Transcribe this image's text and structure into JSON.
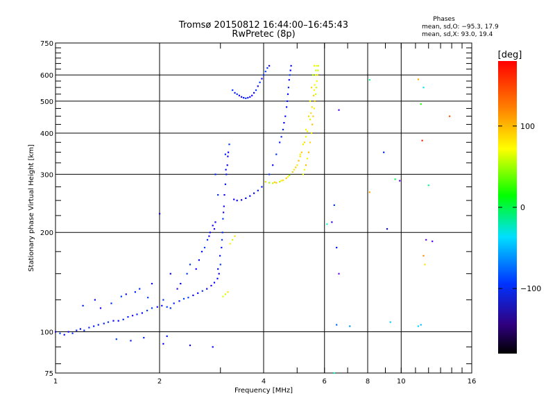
{
  "chart_data": {
    "type": "scatter",
    "title": "Tromsø 20150812 16:44:00–16:45:43",
    "subtitle": "RwPretec (8p)",
    "xlabel": "Frequency [MHz]",
    "ylabel": "Stationary phase Virtual Height [km]",
    "x_scale": "log",
    "y_scale": "log",
    "xlim": [
      1,
      16
    ],
    "ylim": [
      75,
      750
    ],
    "x_ticks": [
      1,
      2,
      4,
      6,
      8,
      10,
      16
    ],
    "x_tick_labels": [
      "1",
      "2",
      "4",
      "6",
      "8",
      "10",
      "16"
    ],
    "y_ticks": [
      75,
      100,
      200,
      300,
      400,
      500,
      600,
      750
    ],
    "y_tick_labels": [
      "75",
      "100",
      "200",
      "300",
      "400",
      "500",
      "600",
      "750"
    ],
    "grid": true,
    "legend": {
      "title": "Phases",
      "lines": [
        "mean, sd,O: −95.3, 17.9",
        "mean, sd,X:  93.0, 19.4"
      ],
      "placement": "top-right"
    },
    "colorbar": {
      "title": "[deg]",
      "range": [
        -180,
        180
      ],
      "tick_values": [
        100,
        0,
        -100
      ],
      "tick_labels": [
        "100",
        "0",
        "−100"
      ],
      "placement": "right"
    },
    "series": [
      {
        "mode": "O",
        "phase_deg": -95,
        "color_hint": "blue",
        "points": [
          [
            1.0,
            100
          ],
          [
            1.03,
            99
          ],
          [
            1.06,
            98
          ],
          [
            1.09,
            100
          ],
          [
            1.12,
            99
          ],
          [
            1.15,
            101
          ],
          [
            1.18,
            102
          ],
          [
            1.21,
            101
          ],
          [
            1.25,
            103
          ],
          [
            1.29,
            104
          ],
          [
            1.33,
            105
          ],
          [
            1.38,
            106
          ],
          [
            1.42,
            107
          ],
          [
            1.47,
            108
          ],
          [
            1.52,
            108
          ],
          [
            1.57,
            109
          ],
          [
            1.62,
            111
          ],
          [
            1.67,
            112
          ],
          [
            1.72,
            113
          ],
          [
            1.78,
            114
          ],
          [
            1.84,
            116
          ],
          [
            1.9,
            118
          ],
          [
            1.97,
            119
          ],
          [
            2.03,
            120
          ],
          [
            2.1,
            119
          ],
          [
            2.15,
            118
          ],
          [
            2.2,
            122
          ],
          [
            2.28,
            124
          ],
          [
            2.35,
            126
          ],
          [
            2.42,
            127
          ],
          [
            2.5,
            129
          ],
          [
            2.58,
            131
          ],
          [
            2.66,
            133
          ],
          [
            2.74,
            135
          ],
          [
            2.82,
            138
          ],
          [
            2.88,
            141
          ],
          [
            2.94,
            145
          ],
          [
            2.97,
            150
          ],
          [
            3.0,
            160
          ],
          [
            3.02,
            180
          ],
          [
            3.04,
            200
          ],
          [
            3.05,
            220
          ],
          [
            3.07,
            240
          ],
          [
            3.08,
            260
          ],
          [
            3.1,
            280
          ],
          [
            3.12,
            300
          ],
          [
            3.14,
            320
          ],
          [
            3.16,
            350
          ],
          [
            3.18,
            370
          ],
          [
            3.06,
            230
          ],
          [
            3.11,
            310
          ],
          [
            3.15,
            340
          ],
          [
            2.99,
            170
          ],
          [
            3.03,
            190
          ],
          [
            2.95,
            155
          ],
          [
            3.28,
            252
          ],
          [
            3.35,
            250
          ],
          [
            3.45,
            251
          ],
          [
            3.55,
            254
          ],
          [
            3.65,
            258
          ],
          [
            3.75,
            263
          ],
          [
            3.85,
            268
          ],
          [
            3.95,
            275
          ],
          [
            4.05,
            285
          ],
          [
            4.15,
            300
          ],
          [
            4.25,
            320
          ],
          [
            4.35,
            345
          ],
          [
            4.45,
            375
          ],
          [
            4.55,
            410
          ],
          [
            4.62,
            450
          ],
          [
            4.68,
            500
          ],
          [
            4.72,
            550
          ],
          [
            4.76,
            600
          ],
          [
            4.8,
            640
          ],
          [
            4.5,
            390
          ],
          [
            4.58,
            430
          ],
          [
            4.66,
            480
          ],
          [
            4.7,
            525
          ],
          [
            4.74,
            580
          ],
          [
            4.78,
            620
          ],
          [
            3.25,
            540
          ],
          [
            3.35,
            525
          ],
          [
            3.45,
            515
          ],
          [
            3.55,
            510
          ],
          [
            3.65,
            515
          ],
          [
            3.75,
            530
          ],
          [
            3.85,
            555
          ],
          [
            3.95,
            585
          ],
          [
            4.05,
            615
          ],
          [
            4.15,
            640
          ],
          [
            3.3,
            530
          ],
          [
            3.4,
            520
          ],
          [
            3.5,
            512
          ],
          [
            3.6,
            512
          ],
          [
            3.7,
            520
          ],
          [
            3.8,
            540
          ],
          [
            3.9,
            570
          ],
          [
            4.0,
            600
          ],
          [
            4.1,
            630
          ],
          [
            2.7,
            180
          ],
          [
            2.75,
            190
          ],
          [
            2.8,
            200
          ],
          [
            2.85,
            210
          ],
          [
            2.9,
            215
          ],
          [
            2.78,
            195
          ],
          [
            2.88,
            205
          ],
          [
            1.2,
            120
          ],
          [
            1.3,
            125
          ],
          [
            1.45,
            122
          ],
          [
            1.6,
            130
          ],
          [
            1.75,
            135
          ],
          [
            1.9,
            140
          ],
          [
            2.05,
            125
          ],
          [
            2.15,
            150
          ],
          [
            2.3,
            140
          ],
          [
            2.45,
            160
          ],
          [
            2.55,
            155
          ],
          [
            2.65,
            175
          ],
          [
            1.35,
            118
          ],
          [
            1.55,
            128
          ],
          [
            1.7,
            132
          ],
          [
            1.85,
            127
          ],
          [
            2.25,
            135
          ],
          [
            2.4,
            150
          ],
          [
            2.6,
            165
          ],
          [
            1.5,
            95
          ],
          [
            1.65,
            94
          ],
          [
            1.8,
            96
          ],
          [
            2.05,
            92
          ],
          [
            2.45,
            91
          ],
          [
            2.85,
            90
          ],
          [
            2.1,
            97
          ],
          [
            2.0,
            228
          ],
          [
            2.95,
            260
          ],
          [
            3.1,
            345
          ],
          [
            2.9,
            300
          ]
        ]
      },
      {
        "mode": "X",
        "phase_deg": 93,
        "color_hint": "yellow",
        "points": [
          [
            4.05,
            285
          ],
          [
            4.15,
            283
          ],
          [
            4.25,
            282
          ],
          [
            4.35,
            283
          ],
          [
            4.45,
            285
          ],
          [
            4.55,
            288
          ],
          [
            4.65,
            292
          ],
          [
            4.75,
            298
          ],
          [
            4.85,
            305
          ],
          [
            4.95,
            315
          ],
          [
            5.05,
            330
          ],
          [
            5.15,
            350
          ],
          [
            5.25,
            375
          ],
          [
            5.35,
            405
          ],
          [
            5.45,
            440
          ],
          [
            5.52,
            480
          ],
          [
            5.58,
            520
          ],
          [
            5.62,
            560
          ],
          [
            5.65,
            600
          ],
          [
            5.68,
            640
          ],
          [
            4.3,
            284
          ],
          [
            4.5,
            287
          ],
          [
            4.7,
            295
          ],
          [
            4.9,
            310
          ],
          [
            5.1,
            340
          ],
          [
            5.3,
            390
          ],
          [
            5.48,
            460
          ],
          [
            5.6,
            540
          ],
          [
            5.66,
            620
          ],
          [
            5.2,
            300
          ],
          [
            5.3,
            320
          ],
          [
            5.4,
            350
          ],
          [
            5.5,
            400
          ],
          [
            5.56,
            450
          ],
          [
            5.62,
            500
          ],
          [
            5.68,
            550
          ],
          [
            5.72,
            600
          ],
          [
            5.75,
            640
          ],
          [
            5.25,
            310
          ],
          [
            5.35,
            335
          ],
          [
            5.45,
            375
          ],
          [
            5.53,
            425
          ],
          [
            5.6,
            475
          ],
          [
            5.66,
            525
          ],
          [
            5.7,
            575
          ],
          [
            5.74,
            620
          ],
          [
            5.0,
            320
          ],
          [
            5.1,
            345
          ],
          [
            5.2,
            370
          ],
          [
            5.3,
            410
          ],
          [
            5.4,
            450
          ],
          [
            5.45,
            500
          ],
          [
            5.5,
            550
          ],
          [
            5.55,
            600
          ],
          [
            5.6,
            640
          ],
          [
            3.2,
            185
          ],
          [
            3.25,
            190
          ],
          [
            3.3,
            195
          ],
          [
            3.05,
            128
          ],
          [
            3.1,
            130
          ],
          [
            3.15,
            132
          ]
        ]
      },
      {
        "mode": "sparse",
        "color_hint": "mixed",
        "points": [
          [
            6.6,
            470,
            -130
          ],
          [
            6.1,
            212,
            10
          ],
          [
            6.3,
            215,
            -120
          ],
          [
            6.4,
            242,
            -80
          ],
          [
            6.5,
            180,
            -95
          ],
          [
            6.6,
            150,
            -150
          ],
          [
            6.5,
            105,
            -60
          ],
          [
            7.1,
            104,
            -40
          ],
          [
            8.1,
            580,
            20
          ],
          [
            8.1,
            265,
            120
          ],
          [
            8.9,
            350,
            -90
          ],
          [
            9.1,
            205,
            -100
          ],
          [
            9.3,
            107,
            -20
          ],
          [
            9.9,
            287,
            -150
          ],
          [
            9.6,
            290,
            30
          ],
          [
            11.2,
            582,
            120
          ],
          [
            11.6,
            550,
            -10
          ],
          [
            11.6,
            170,
            130
          ],
          [
            11.7,
            160,
            100
          ],
          [
            11.4,
            490,
            50
          ],
          [
            11.5,
            380,
            170
          ],
          [
            11.2,
            104,
            -15
          ],
          [
            11.4,
            105,
            -25
          ],
          [
            11.8,
            190,
            -150
          ],
          [
            12.3,
            188,
            -140
          ],
          [
            13.8,
            450,
            150
          ],
          [
            12.0,
            278,
            20
          ],
          [
            6.4,
            75,
            10
          ]
        ]
      }
    ]
  }
}
